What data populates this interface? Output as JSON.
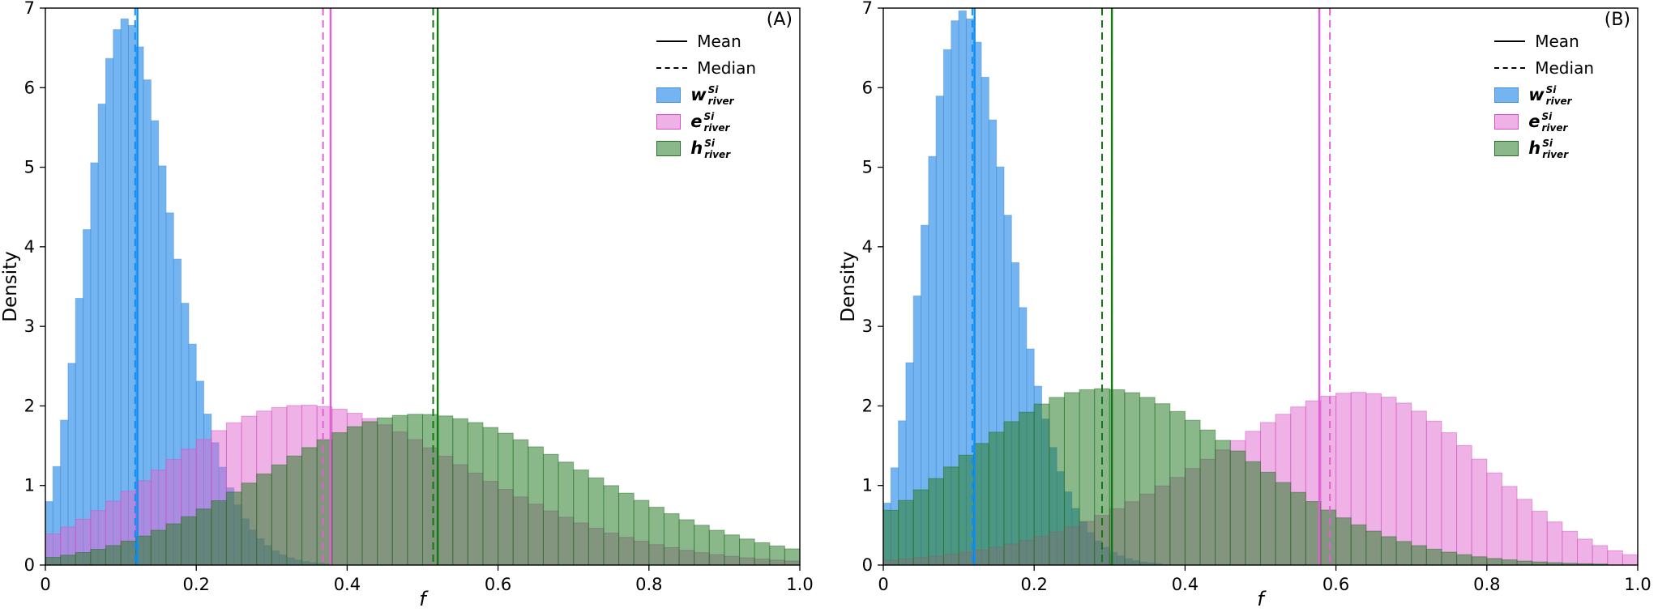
{
  "figure_background": "#ffffff",
  "chart_data": [
    {
      "type": "histogram",
      "panel_label": "(A)",
      "xlabel": "f",
      "ylabel": "Density",
      "xlim": [
        0,
        1.0
      ],
      "ylim": [
        0,
        7
      ],
      "xtick_values": [
        0,
        0.2,
        0.4,
        0.6,
        0.8,
        1.0
      ],
      "xtick_labels": [
        "0",
        "0.2",
        "0.4",
        "0.6",
        "0.8",
        "1.0"
      ],
      "ytick_values": [
        0,
        1,
        2,
        3,
        4,
        5,
        6,
        7
      ],
      "ytick_labels": [
        "0",
        "1",
        "2",
        "3",
        "4",
        "5",
        "6",
        "7"
      ],
      "grid": false,
      "legend_position": "upper right",
      "legend": {
        "mean_label": "Mean",
        "median_label": "Median"
      },
      "series": [
        {
          "id": "w_river_Si",
          "letter": "w",
          "sup": "Si",
          "sub": "river",
          "mean": 0.122,
          "median": 0.119,
          "peak_density": 6.8,
          "bin_width": 0.01,
          "distribution": {
            "loc": 0.0597,
            "scale": 0.0873,
            "skew": 2.0
          },
          "fill": "#1f87e8",
          "fill_opacity": 0.62,
          "edge": "#4a90d9",
          "line_color": "#0f8ff5"
        },
        {
          "id": "e_river_Si",
          "letter": "e",
          "sup": "Si",
          "sub": "river",
          "mean": 0.378,
          "median": 0.368,
          "peak_density": 1.95,
          "bin_width": 0.02,
          "distribution": {
            "loc": 0.1922,
            "scale": 0.2798,
            "skew": 1.5
          },
          "fill": "#e066d0",
          "fill_opacity": 0.5,
          "edge": "#d44fc0",
          "line_color": "#e45fd5"
        },
        {
          "id": "h_river_Si",
          "letter": "h",
          "sup": "Si",
          "sub": "river",
          "mean": 0.52,
          "median": 0.514,
          "peak_density": 1.85,
          "bin_width": 0.02,
          "distribution": {
            "loc": 0.3505,
            "scale": 0.2765,
            "skew": 1.2
          },
          "fill": "#2a7d2a",
          "fill_opacity": 0.55,
          "edge": "#256e25",
          "line_color": "#0f7a0f"
        }
      ]
    },
    {
      "type": "histogram",
      "panel_label": "(B)",
      "xlabel": "f",
      "ylabel": "Density",
      "xlim": [
        0,
        1.0
      ],
      "ylim": [
        0,
        7
      ],
      "xtick_values": [
        0,
        0.2,
        0.4,
        0.6,
        0.8,
        1.0
      ],
      "xtick_labels": [
        "0",
        "0.2",
        "0.4",
        "0.6",
        "0.8",
        "1.0"
      ],
      "ytick_values": [
        0,
        1,
        2,
        3,
        4,
        5,
        6,
        7
      ],
      "ytick_labels": [
        "0",
        "1",
        "2",
        "3",
        "4",
        "5",
        "6",
        "7"
      ],
      "grid": false,
      "legend_position": "upper right",
      "legend": {
        "mean_label": "Mean",
        "median_label": "Median"
      },
      "series": [
        {
          "id": "w_river_Si",
          "letter": "w",
          "sup": "Si",
          "sub": "river",
          "mean": 0.121,
          "median": 0.118,
          "peak_density": 6.9,
          "bin_width": 0.01,
          "distribution": {
            "loc": 0.0597,
            "scale": 0.086,
            "skew": 2.0
          },
          "fill": "#1f87e8",
          "fill_opacity": 0.62,
          "edge": "#4a90d9",
          "line_color": "#0f8ff5"
        },
        {
          "id": "e_river_Si",
          "letter": "e",
          "sup": "Si",
          "sub": "river",
          "mean": 0.578,
          "median": 0.592,
          "peak_density": 2.15,
          "bin_width": 0.02,
          "distribution": {
            "loc": 0.775,
            "scale": 0.2761,
            "skew": -2.0
          },
          "fill": "#e066d0",
          "fill_opacity": 0.5,
          "edge": "#d44fc0",
          "line_color": "#e45fd5"
        },
        {
          "id": "h_river_Si",
          "letter": "h",
          "sup": "Si",
          "sub": "river",
          "mean": 0.303,
          "median": 0.29,
          "peak_density": 2.1,
          "bin_width": 0.02,
          "distribution": {
            "loc": 0.1722,
            "scale": 0.2319,
            "skew": 1.0
          },
          "fill": "#2a7d2a",
          "fill_opacity": 0.55,
          "edge": "#256e25",
          "line_color": "#0f7a0f"
        }
      ]
    }
  ]
}
